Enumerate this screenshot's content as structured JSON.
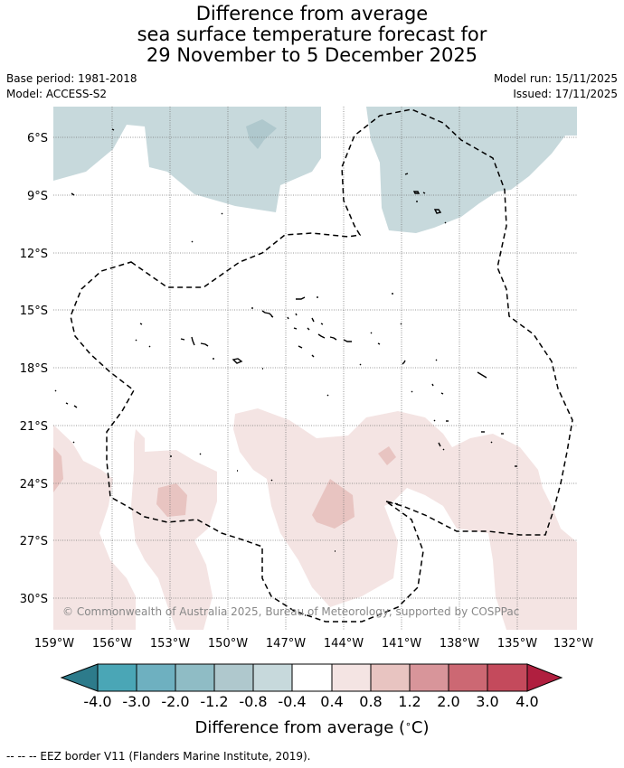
{
  "title": {
    "line1": "Difference from average",
    "line2": "sea surface temperature forecast for",
    "line3": "29 November to 5 December 2025"
  },
  "meta": {
    "base_period": "Base period: 1981-2018",
    "model": "Model: ACCESS-S2",
    "model_run": "Model run: 15/11/2025",
    "issued": "Issued: 17/11/2025"
  },
  "map": {
    "lat_labels": [
      "6°S",
      "9°S",
      "12°S",
      "15°S",
      "18°S",
      "21°S",
      "24°S",
      "27°S",
      "30°S"
    ],
    "lon_labels": [
      "159°W",
      "156°W",
      "153°W",
      "150°W",
      "147°W",
      "144°W",
      "141°W",
      "138°W",
      "135°W",
      "132°W"
    ],
    "copyright": "© Commonwealth of Australia 2025, Bureau of Meteorology, supported by COSPPac"
  },
  "colorbar": {
    "ticks": [
      "-4.0",
      "-3.0",
      "-2.0",
      "-1.2",
      "-0.8",
      "-0.4",
      "0.4",
      "0.8",
      "1.2",
      "2.0",
      "3.0",
      "4.0"
    ],
    "colors": [
      "#2d7b8b",
      "#4aa6b6",
      "#6eb0c0",
      "#8fbcc5",
      "#afc8cd",
      "#c7d9dc",
      "#ffffff",
      "#f4e4e3",
      "#e8c4c1",
      "#d8959a",
      "#cc6873",
      "#c44a5c",
      "#b01f3f"
    ],
    "label_main": "Difference from average (",
    "label_unit": "∘",
    "label_end": "C)"
  },
  "footer": "--  --  -- EEZ border V11 (Flanders Marine Institute, 2019)."
}
